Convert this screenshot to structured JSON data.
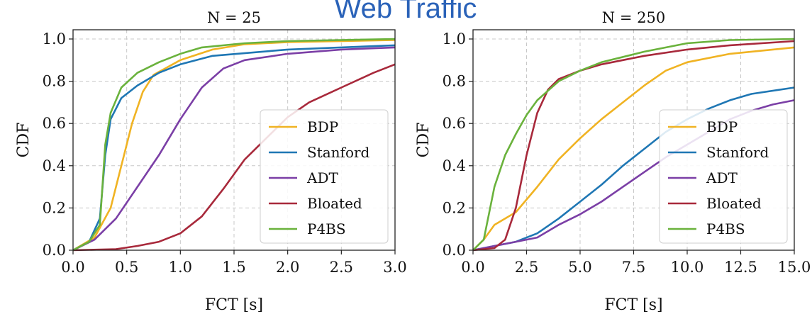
{
  "figure": {
    "suptitle": "Web Traffic"
  },
  "chart_data": [
    {
      "type": "line",
      "title": "N = 25",
      "xlabel": "FCT [s]",
      "ylabel": "CDF",
      "xlim": [
        0,
        3
      ],
      "ylim": [
        0,
        1
      ],
      "xticks": [
        "0.0",
        "0.5",
        "1.0",
        "1.5",
        "2.0",
        "2.5",
        "3.0"
      ],
      "yticks": [
        "0.0",
        "0.2",
        "0.4",
        "0.6",
        "0.8",
        "1.0"
      ],
      "grid": true,
      "legend_position": "lower-right",
      "series": [
        {
          "name": "BDP",
          "color": "#f0b323",
          "points": [
            [
              0,
              0
            ],
            [
              0.2,
              0.06
            ],
            [
              0.35,
              0.2
            ],
            [
              0.45,
              0.4
            ],
            [
              0.55,
              0.6
            ],
            [
              0.65,
              0.75
            ],
            [
              0.75,
              0.83
            ],
            [
              1.0,
              0.9
            ],
            [
              1.3,
              0.95
            ],
            [
              1.6,
              0.975
            ],
            [
              2.0,
              0.985
            ],
            [
              3.0,
              0.995
            ]
          ]
        },
        {
          "name": "Stanford",
          "color": "#1f77b4",
          "points": [
            [
              0,
              0
            ],
            [
              0.15,
              0.04
            ],
            [
              0.25,
              0.15
            ],
            [
              0.3,
              0.45
            ],
            [
              0.35,
              0.62
            ],
            [
              0.45,
              0.72
            ],
            [
              0.6,
              0.78
            ],
            [
              0.8,
              0.84
            ],
            [
              1.0,
              0.88
            ],
            [
              1.3,
              0.92
            ],
            [
              2.0,
              0.95
            ],
            [
              3.0,
              0.97
            ]
          ]
        },
        {
          "name": "ADT",
          "color": "#7b3fa6",
          "points": [
            [
              0,
              0
            ],
            [
              0.2,
              0.05
            ],
            [
              0.4,
              0.15
            ],
            [
              0.6,
              0.3
            ],
            [
              0.8,
              0.45
            ],
            [
              1.0,
              0.62
            ],
            [
              1.2,
              0.77
            ],
            [
              1.4,
              0.86
            ],
            [
              1.6,
              0.9
            ],
            [
              2.0,
              0.93
            ],
            [
              2.5,
              0.95
            ],
            [
              3.0,
              0.96
            ]
          ]
        },
        {
          "name": "Bloated",
          "color": "#a8293b",
          "points": [
            [
              0,
              0
            ],
            [
              0.4,
              0.005
            ],
            [
              0.6,
              0.02
            ],
            [
              0.8,
              0.04
            ],
            [
              1.0,
              0.08
            ],
            [
              1.2,
              0.16
            ],
            [
              1.4,
              0.29
            ],
            [
              1.6,
              0.43
            ],
            [
              1.8,
              0.53
            ],
            [
              2.0,
              0.63
            ],
            [
              2.2,
              0.7
            ],
            [
              2.5,
              0.77
            ],
            [
              2.8,
              0.84
            ],
            [
              3.0,
              0.88
            ]
          ]
        },
        {
          "name": "P4BS",
          "color": "#6ab23c",
          "points": [
            [
              0,
              0
            ],
            [
              0.15,
              0.04
            ],
            [
              0.25,
              0.12
            ],
            [
              0.3,
              0.5
            ],
            [
              0.35,
              0.65
            ],
            [
              0.45,
              0.77
            ],
            [
              0.6,
              0.84
            ],
            [
              0.8,
              0.89
            ],
            [
              1.0,
              0.93
            ],
            [
              1.2,
              0.96
            ],
            [
              1.6,
              0.98
            ],
            [
              2.0,
              0.99
            ],
            [
              3.0,
              1.0
            ]
          ]
        }
      ]
    },
    {
      "type": "line",
      "title": "N = 250",
      "xlabel": "FCT [s]",
      "ylabel": "CDF",
      "xlim": [
        0,
        15
      ],
      "ylim": [
        0,
        1
      ],
      "xticks": [
        "0.0",
        "2.5",
        "5.0",
        "7.5",
        "10.0",
        "12.5",
        "15.0"
      ],
      "yticks": [
        "0.0",
        "0.2",
        "0.4",
        "0.6",
        "0.8",
        "1.0"
      ],
      "grid": true,
      "legend_position": "lower-right",
      "series": [
        {
          "name": "BDP",
          "color": "#f0b323",
          "points": [
            [
              0,
              0
            ],
            [
              0.5,
              0.05
            ],
            [
              1,
              0.12
            ],
            [
              2,
              0.18
            ],
            [
              3,
              0.3
            ],
            [
              4,
              0.43
            ],
            [
              5,
              0.53
            ],
            [
              6,
              0.62
            ],
            [
              7,
              0.7
            ],
            [
              8,
              0.78
            ],
            [
              9,
              0.85
            ],
            [
              10,
              0.89
            ],
            [
              12,
              0.93
            ],
            [
              15,
              0.96
            ]
          ]
        },
        {
          "name": "Stanford",
          "color": "#1f77b4",
          "points": [
            [
              0,
              0
            ],
            [
              1,
              0.02
            ],
            [
              2,
              0.04
            ],
            [
              3,
              0.08
            ],
            [
              4,
              0.15
            ],
            [
              5,
              0.23
            ],
            [
              6,
              0.31
            ],
            [
              7,
              0.4
            ],
            [
              8,
              0.48
            ],
            [
              9,
              0.56
            ],
            [
              10,
              0.62
            ],
            [
              11,
              0.67
            ],
            [
              12,
              0.71
            ],
            [
              13,
              0.74
            ],
            [
              15,
              0.77
            ]
          ]
        },
        {
          "name": "ADT",
          "color": "#7b3fa6",
          "points": [
            [
              0,
              0
            ],
            [
              1,
              0.02
            ],
            [
              2,
              0.04
            ],
            [
              3,
              0.06
            ],
            [
              4,
              0.12
            ],
            [
              5,
              0.17
            ],
            [
              6,
              0.23
            ],
            [
              7,
              0.3
            ],
            [
              8,
              0.37
            ],
            [
              9,
              0.44
            ],
            [
              10,
              0.5
            ],
            [
              11,
              0.56
            ],
            [
              12,
              0.62
            ],
            [
              13,
              0.66
            ],
            [
              14,
              0.69
            ],
            [
              15,
              0.71
            ]
          ]
        },
        {
          "name": "Bloated",
          "color": "#a8293b",
          "points": [
            [
              0,
              0
            ],
            [
              1,
              0.01
            ],
            [
              1.5,
              0.05
            ],
            [
              2,
              0.2
            ],
            [
              2.5,
              0.45
            ],
            [
              3,
              0.65
            ],
            [
              3.5,
              0.76
            ],
            [
              4,
              0.81
            ],
            [
              5,
              0.85
            ],
            [
              6,
              0.88
            ],
            [
              8,
              0.92
            ],
            [
              10,
              0.95
            ],
            [
              12,
              0.97
            ],
            [
              15,
              0.99
            ]
          ]
        },
        {
          "name": "P4BS",
          "color": "#6ab23c",
          "points": [
            [
              0,
              0
            ],
            [
              0.5,
              0.05
            ],
            [
              1,
              0.3
            ],
            [
              1.5,
              0.45
            ],
            [
              2,
              0.55
            ],
            [
              2.5,
              0.64
            ],
            [
              3,
              0.71
            ],
            [
              4,
              0.8
            ],
            [
              5,
              0.85
            ],
            [
              6,
              0.89
            ],
            [
              8,
              0.94
            ],
            [
              10,
              0.98
            ],
            [
              12,
              0.995
            ],
            [
              15,
              1.0
            ]
          ]
        }
      ]
    }
  ]
}
